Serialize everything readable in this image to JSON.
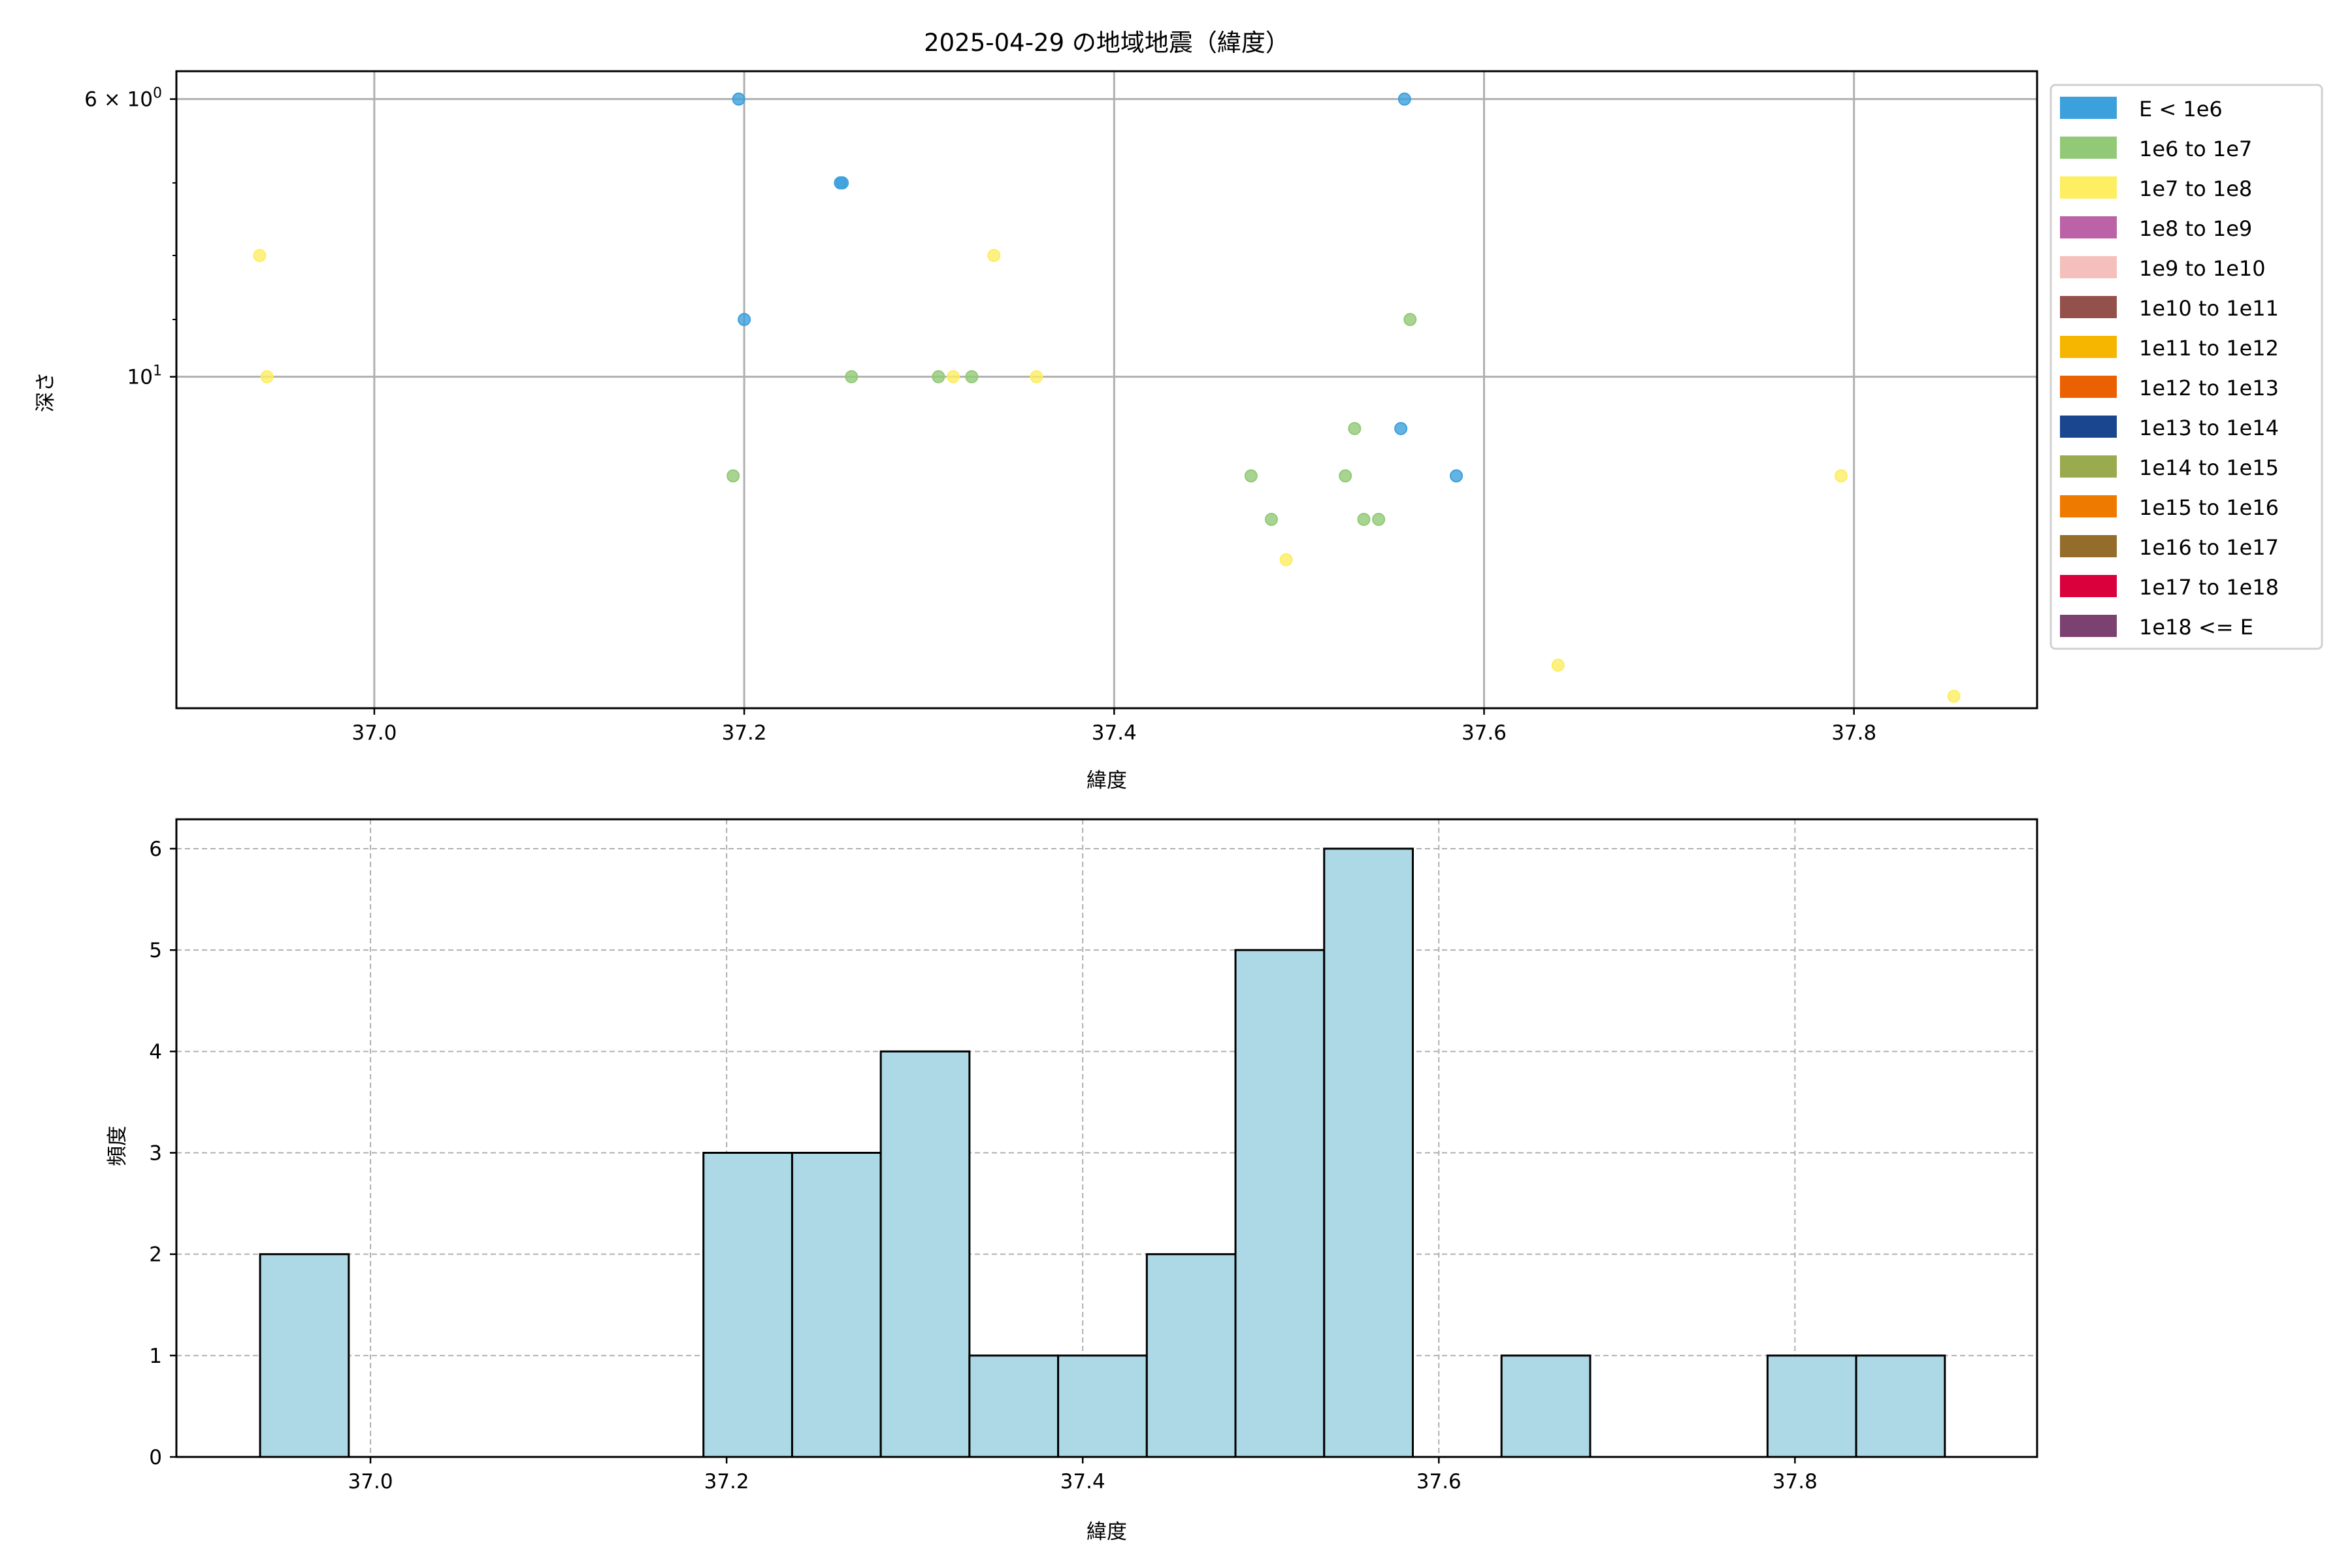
{
  "chart_data": [
    {
      "type": "scatter",
      "title": "2025-04-29 の地域地震（緯度）",
      "xlabel": "緯度",
      "ylabel": "深さ",
      "xlim": [
        36.893,
        37.899
      ],
      "ylim": [
        5.7,
        18.4
      ],
      "yscale": "log",
      "yinverted": true,
      "grid": true,
      "xticks": [
        37.0,
        37.2,
        37.4,
        37.6,
        37.8
      ],
      "xtick_labels": [
        "37.0",
        "37.2",
        "37.4",
        "37.6",
        "37.8"
      ],
      "yticks": [
        {
          "value": 6,
          "base": "6 × 10",
          "exp": "0"
        },
        {
          "value": 10,
          "base": "10",
          "exp": "1"
        }
      ],
      "yminor_ticks": [
        7,
        8,
        9
      ],
      "legend_position": "outside-right",
      "legend": [
        {
          "label": "E < 1e6",
          "color": "#3ca0dc"
        },
        {
          "label": "1e6 to 1e7",
          "color": "#92c977"
        },
        {
          "label": "1e7 to 1e8",
          "color": "#fdee62"
        },
        {
          "label": "1e8 to 1e9",
          "color": "#bb63a6"
        },
        {
          "label": "1e9 to 1e10",
          "color": "#f5c0bb"
        },
        {
          "label": "1e10 to 1e11",
          "color": "#94514b"
        },
        {
          "label": "1e11 to 1e12",
          "color": "#f6b600"
        },
        {
          "label": "1e12 to 1e13",
          "color": "#eb6000"
        },
        {
          "label": "1e13 to 1e14",
          "color": "#1a4690"
        },
        {
          "label": "1e14 to 1e15",
          "color": "#9aab4f"
        },
        {
          "label": "1e15 to 1e16",
          "color": "#ef7a00"
        },
        {
          "label": "1e16 to 1e17",
          "color": "#946d2c"
        },
        {
          "label": "1e17 to 1e18",
          "color": "#d9003b"
        },
        {
          "label": "1e18 <= E",
          "color": "#7b4171"
        }
      ],
      "points": [
        {
          "x": 36.938,
          "y": 8,
          "class": 2
        },
        {
          "x": 36.942,
          "y": 10,
          "class": 2
        },
        {
          "x": 37.197,
          "y": 6,
          "class": 0
        },
        {
          "x": 37.252,
          "y": 7,
          "class": 0
        },
        {
          "x": 37.253,
          "y": 7,
          "class": 0
        },
        {
          "x": 37.2,
          "y": 9,
          "class": 0
        },
        {
          "x": 37.194,
          "y": 12,
          "class": 1
        },
        {
          "x": 37.258,
          "y": 10,
          "class": 1
        },
        {
          "x": 37.305,
          "y": 10,
          "class": 1
        },
        {
          "x": 37.313,
          "y": 10,
          "class": 2
        },
        {
          "x": 37.323,
          "y": 10,
          "class": 1
        },
        {
          "x": 37.335,
          "y": 8,
          "class": 2
        },
        {
          "x": 37.358,
          "y": 10,
          "class": 2
        },
        {
          "x": 37.557,
          "y": 6,
          "class": 0
        },
        {
          "x": 37.56,
          "y": 9,
          "class": 1
        },
        {
          "x": 37.53,
          "y": 11,
          "class": 1
        },
        {
          "x": 37.555,
          "y": 11,
          "class": 0
        },
        {
          "x": 37.474,
          "y": 12,
          "class": 1
        },
        {
          "x": 37.525,
          "y": 12,
          "class": 1
        },
        {
          "x": 37.585,
          "y": 12,
          "class": 0
        },
        {
          "x": 37.485,
          "y": 13,
          "class": 1
        },
        {
          "x": 37.535,
          "y": 13,
          "class": 1
        },
        {
          "x": 37.543,
          "y": 13,
          "class": 1
        },
        {
          "x": 37.493,
          "y": 14,
          "class": 2
        },
        {
          "x": 37.793,
          "y": 12,
          "class": 2
        },
        {
          "x": 37.64,
          "y": 17,
          "class": 2
        },
        {
          "x": 37.854,
          "y": 18,
          "class": 2
        }
      ]
    },
    {
      "type": "bar",
      "subtype": "histogram",
      "xlabel": "緯度",
      "ylabel": "頻度",
      "xlim": [
        36.891,
        37.936
      ],
      "ylim": [
        0,
        6.29
      ],
      "grid": true,
      "grid_style": "dashed",
      "bar_color": "#add8e6",
      "edge_color": "#000000",
      "bin_start": 36.938,
      "bin_width": 0.0498,
      "counts": [
        2,
        0,
        0,
        0,
        0,
        3,
        3,
        4,
        1,
        1,
        2,
        5,
        6,
        0,
        1,
        0,
        0,
        1,
        1
      ],
      "xticks": [
        37.0,
        37.2,
        37.4,
        37.6,
        37.8
      ],
      "xtick_labels": [
        "37.0",
        "37.2",
        "37.4",
        "37.6",
        "37.8"
      ],
      "yticks": [
        0,
        1,
        2,
        3,
        4,
        5,
        6
      ],
      "ytick_labels": [
        "0",
        "1",
        "2",
        "3",
        "4",
        "5",
        "6"
      ]
    }
  ]
}
